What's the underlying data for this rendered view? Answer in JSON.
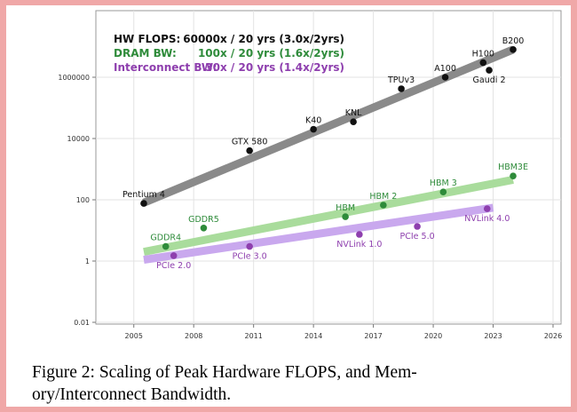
{
  "chart_data": {
    "type": "scatter",
    "caption": [
      "Figure 2: Scaling of Peak Hardware FLOPS, and Mem-",
      "ory/Interconnect Bandwidth."
    ],
    "xlim": [
      2003.1,
      2026.4
    ],
    "xticks": [
      2005,
      2008,
      2011,
      2014,
      2017,
      2020,
      2023,
      2026
    ],
    "ylim": [
      0.01,
      100000000
    ],
    "yticks": [
      0.01,
      1,
      100,
      10000,
      1000000
    ],
    "ylog": true,
    "grid": true,
    "series": [
      {
        "name": "HW FLOPS:",
        "note": "60000x / 20 yrs (3.0x/2yrs)",
        "color": "#111111",
        "trend_color": "#8a8a8a",
        "labels": [
          "Pentium 4",
          "GTX 580",
          "K40",
          "KNL",
          "TPUv3",
          "A100",
          "H100",
          "Gaudi 2",
          "B200"
        ],
        "x": [
          2005.5,
          2010.8,
          2014,
          2016,
          2018.4,
          2020.6,
          2022.5,
          2022.8,
          2024
        ],
        "values": [
          76,
          4000,
          20000,
          35000,
          420000,
          1000000,
          3000000,
          1700000,
          8000000
        ],
        "trend_x": [
          2005.5,
          2024
        ],
        "trend_values": [
          80,
          8000000
        ]
      },
      {
        "name": "DRAM BW:",
        "note": "100x / 20 yrs (1.6x/2yrs)",
        "color": "#2e8b3a",
        "trend_color": "#a9dc9c",
        "labels": [
          "GDDR4",
          "GDDR5",
          "HBM",
          "HBM 2",
          "HBM 3",
          "HBM3E"
        ],
        "x": [
          2006.6,
          2008.5,
          2015.6,
          2017.5,
          2020.5,
          2024
        ],
        "values": [
          3,
          12,
          28,
          67,
          180,
          600
        ],
        "trend_x": [
          2005.5,
          2024
        ],
        "trend_values": [
          2,
          450
        ]
      },
      {
        "name": "Interconnect BW:",
        "note": "30x / 20 yrs (1.4x/2yrs)",
        "color": "#8e3fae",
        "trend_color": "#c9a8ee",
        "labels": [
          "PCIe 2.0",
          "PCIe 3.0",
          "NVLink 1.0",
          "PCIe 5.0",
          "NVLink 4.0"
        ],
        "x": [
          2007,
          2010.8,
          2016.3,
          2019.2,
          2022.7
        ],
        "values": [
          1.5,
          3,
          7.4,
          13.5,
          51
        ],
        "trend_x": [
          2005.5,
          2023
        ],
        "trend_values": [
          1.1,
          55
        ]
      }
    ]
  }
}
